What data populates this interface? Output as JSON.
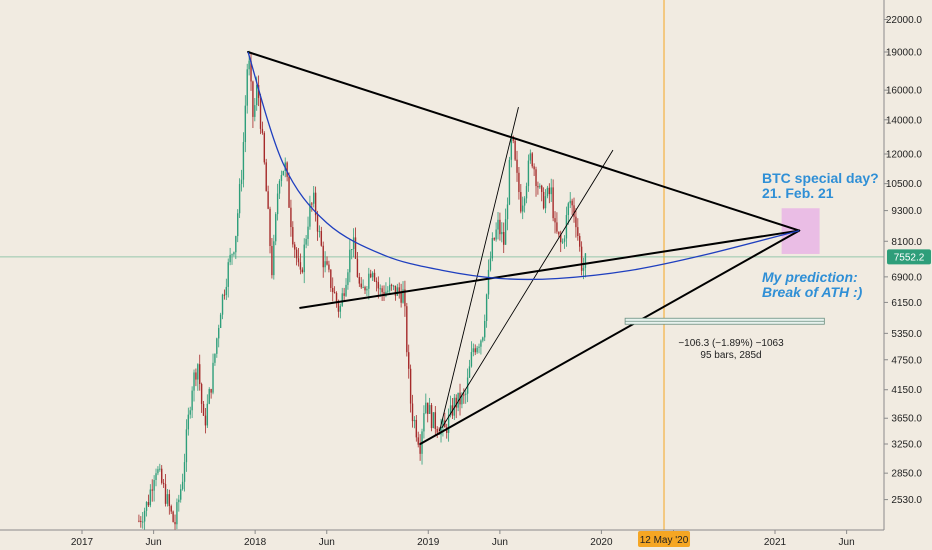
{
  "chart_data": {
    "type": "candlestick",
    "symbol_hint": "BTC",
    "y_scale": "log",
    "ylim": [
      2300,
      24000
    ],
    "y_ticks": [
      "22000.0",
      "19000.0",
      "16000.0",
      "14000.0",
      "12000.0",
      "10500.0",
      "9300.0",
      "8100.0",
      "6900.0",
      "6150.0",
      "5350.0",
      "4750.0",
      "4150.0",
      "3650.0",
      "3250.0",
      "2850.0",
      "2530.0"
    ],
    "x_ticks": [
      "2017",
      "Jun",
      "2018",
      "Jun",
      "2019",
      "Jun",
      "2020",
      "Jun",
      "2021",
      "Jun"
    ],
    "current_price": "7552.2",
    "current_price_value": 7552.2,
    "vertical_marker_label": "12 May '20",
    "price_path": [
      {
        "t": "2017-05-01",
        "p": 2300
      },
      {
        "t": "2017-05-20",
        "p": 2500
      },
      {
        "t": "2017-06-05",
        "p": 2950
      },
      {
        "t": "2017-06-25",
        "p": 2600
      },
      {
        "t": "2017-07-15",
        "p": 2250
      },
      {
        "t": "2017-08-01",
        "p": 2800
      },
      {
        "t": "2017-08-20",
        "p": 4200
      },
      {
        "t": "2017-09-02",
        "p": 4700
      },
      {
        "t": "2017-09-15",
        "p": 3500
      },
      {
        "t": "2017-10-01",
        "p": 4300
      },
      {
        "t": "2017-10-20",
        "p": 6000
      },
      {
        "t": "2017-11-05",
        "p": 7200
      },
      {
        "t": "2017-11-20",
        "p": 8200
      },
      {
        "t": "2017-12-05",
        "p": 11500
      },
      {
        "t": "2017-12-17",
        "p": 19000
      },
      {
        "t": "2017-12-28",
        "p": 14000
      },
      {
        "t": "2018-01-06",
        "p": 16500
      },
      {
        "t": "2018-01-20",
        "p": 11500
      },
      {
        "t": "2018-02-06",
        "p": 7000
      },
      {
        "t": "2018-02-20",
        "p": 11000
      },
      {
        "t": "2018-03-05",
        "p": 11400
      },
      {
        "t": "2018-03-20",
        "p": 8500
      },
      {
        "t": "2018-04-06",
        "p": 6800
      },
      {
        "t": "2018-04-25",
        "p": 9300
      },
      {
        "t": "2018-05-05",
        "p": 9700
      },
      {
        "t": "2018-05-25",
        "p": 7400
      },
      {
        "t": "2018-06-10",
        "p": 6700
      },
      {
        "t": "2018-06-28",
        "p": 5900
      },
      {
        "t": "2018-07-25",
        "p": 8200
      },
      {
        "t": "2018-08-12",
        "p": 6300
      },
      {
        "t": "2018-09-05",
        "p": 7300
      },
      {
        "t": "2018-09-20",
        "p": 6450
      },
      {
        "t": "2018-10-15",
        "p": 6500
      },
      {
        "t": "2018-11-10",
        "p": 6400
      },
      {
        "t": "2018-11-20",
        "p": 4500
      },
      {
        "t": "2018-11-26",
        "p": 3800
      },
      {
        "t": "2018-12-15",
        "p": 3250
      },
      {
        "t": "2018-12-25",
        "p": 4000
      },
      {
        "t": "2019-01-10",
        "p": 3600
      },
      {
        "t": "2019-02-05",
        "p": 3450
      },
      {
        "t": "2019-02-25",
        "p": 3900
      },
      {
        "t": "2019-03-20",
        "p": 4000
      },
      {
        "t": "2019-04-05",
        "p": 5000
      },
      {
        "t": "2019-04-25",
        "p": 5300
      },
      {
        "t": "2019-05-14",
        "p": 7800
      },
      {
        "t": "2019-05-28",
        "p": 8700
      },
      {
        "t": "2019-06-10",
        "p": 8000
      },
      {
        "t": "2019-06-26",
        "p": 13000
      },
      {
        "t": "2019-07-05",
        "p": 11000
      },
      {
        "t": "2019-07-16",
        "p": 9500
      },
      {
        "t": "2019-08-06",
        "p": 12000
      },
      {
        "t": "2019-08-28",
        "p": 9700
      },
      {
        "t": "2019-09-18",
        "p": 10100
      },
      {
        "t": "2019-09-25",
        "p": 8500
      },
      {
        "t": "2019-10-10",
        "p": 7900
      },
      {
        "t": "2019-10-26",
        "p": 9800
      },
      {
        "t": "2019-11-08",
        "p": 9000
      },
      {
        "t": "2019-11-22",
        "p": 7100
      },
      {
        "t": "2019-12-02",
        "p": 7552
      }
    ],
    "drawings": {
      "triangle_upper_line": [
        {
          "t": "2017-12-17",
          "p": 19000
        },
        {
          "t": "2021-02-21",
          "p": 8500
        }
      ],
      "triangle_mid_line": [
        {
          "t": "2018-04-06",
          "p": 6000
        },
        {
          "t": "2021-02-21",
          "p": 8500
        }
      ],
      "triangle_lower_line": [
        {
          "t": "2018-12-15",
          "p": 3250
        },
        {
          "t": "2021-02-21",
          "p": 8500
        }
      ],
      "steep_trendline_1": [
        {
          "t": "2019-01-25",
          "p": 3450
        },
        {
          "t": "2019-07-10",
          "p": 14800
        }
      ],
      "steep_trendline_2": [
        {
          "t": "2019-01-30",
          "p": 3500
        },
        {
          "t": "2020-01-25",
          "p": 12200
        }
      ],
      "blue_arc": [
        {
          "t": "2017-12-17",
          "p": 19000
        },
        {
          "t": "2018-03-01",
          "p": 11500
        },
        {
          "t": "2018-06-01",
          "p": 8800
        },
        {
          "t": "2018-10-01",
          "p": 7600
        },
        {
          "t": "2019-02-01",
          "p": 7100
        },
        {
          "t": "2019-06-01",
          "p": 6850
        },
        {
          "t": "2019-10-01",
          "p": 6850
        },
        {
          "t": "2020-03-01",
          "p": 7100
        },
        {
          "t": "2020-08-01",
          "p": 7600
        },
        {
          "t": "2021-02-21",
          "p": 8500
        }
      ],
      "target_box": {
        "t1": "2021-01-15",
        "t2": "2021-04-05",
        "p_low": 7650,
        "p_high": 9400
      },
      "measure_range": {
        "t1": "2020-02-20",
        "t2": "2021-04-15",
        "p": 5650
      }
    }
  },
  "annotations": {
    "special_day_line1": "BTC special day?",
    "special_day_line2": "21. Feb. 21",
    "prediction_line1": "My prediction:",
    "prediction_line2": "Break of ATH :)",
    "measure_line1": "−106.3 (−1.89%) −1063",
    "measure_line2": "95 bars, 285d"
  },
  "colors": {
    "background": "#f1ebe1",
    "candle_up": "#2e9e7a",
    "candle_down": "#a52a2a",
    "arc": "#1f3fbf",
    "marker_line": "#f5a623",
    "price_badge": "#2e9e7a",
    "target_box": "#e9b8e6",
    "annotation_text": "#2f8fd6"
  }
}
